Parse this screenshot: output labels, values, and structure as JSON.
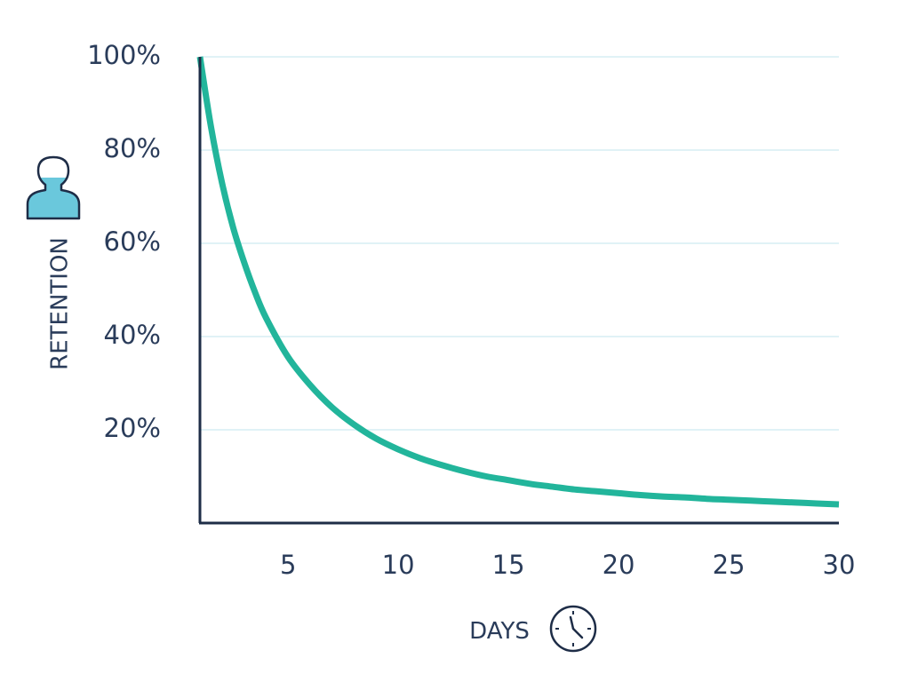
{
  "chart_data": {
    "type": "line",
    "xlabel": "DAYS",
    "ylabel": "RETENTION",
    "xlim": [
      1,
      30
    ],
    "ylim": [
      0,
      100
    ],
    "x_ticks": [
      "5",
      "10",
      "15",
      "20",
      "25",
      "30"
    ],
    "x_tick_values": [
      5,
      10,
      15,
      20,
      25,
      30
    ],
    "y_ticks": [
      "20%",
      "40%",
      "60%",
      "80%",
      "100%"
    ],
    "y_tick_values": [
      20,
      40,
      60,
      80,
      100
    ],
    "grid": "horizontal",
    "series": [
      {
        "color": "#22b59b",
        "x": [
          1,
          1.5,
          2,
          2.5,
          3,
          3.5,
          4,
          5,
          6,
          7,
          8,
          9,
          10,
          11,
          12,
          13,
          14,
          15,
          16,
          17,
          18,
          19,
          20,
          21,
          22,
          23,
          24,
          25,
          26,
          27,
          28,
          29,
          30
        ],
        "y": [
          100,
          85,
          73,
          63.5,
          56,
          49.5,
          44,
          35.6,
          29.6,
          24.8,
          21.1,
          18.1,
          15.8,
          13.9,
          12.4,
          11.1,
          10.0,
          9.2,
          8.4,
          7.8,
          7.2,
          6.8,
          6.4,
          6.0,
          5.7,
          5.5,
          5.2,
          5.0,
          4.8,
          4.6,
          4.4,
          4.2,
          4.0
        ]
      }
    ],
    "colors": {
      "axis": "#1e2d47",
      "grid": "#d6eef4",
      "text": "#2a3c5a",
      "icon_fill": "#6ac8dc"
    },
    "icons": [
      "person-icon",
      "clock-icon"
    ]
  }
}
